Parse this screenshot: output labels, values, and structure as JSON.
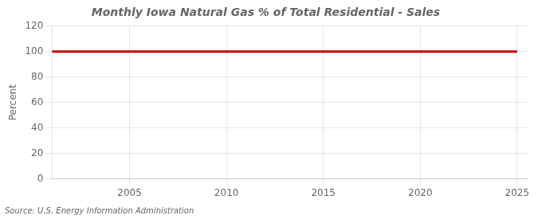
{
  "chart_data": {
    "type": "line",
    "title": "Monthly Iowa Natural Gas % of Total Residential - Sales",
    "ylabel": "Percent",
    "annotation": "Source: U.S. Energy Information Administration",
    "x": [
      2001,
      2025
    ],
    "values": [
      100,
      100
    ],
    "color": "#cc0000",
    "xlim": [
      2001.0,
      2025.5
    ],
    "ylim": [
      0,
      120
    ],
    "xticks": [
      2005,
      2010,
      2015,
      2020,
      2025
    ],
    "yticks": [
      0,
      20,
      40,
      60,
      80,
      100,
      120
    ],
    "grid": true
  }
}
